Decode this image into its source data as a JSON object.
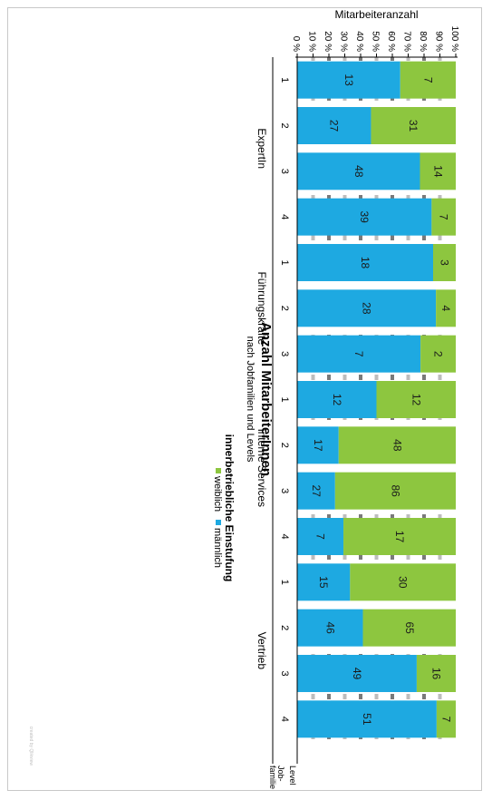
{
  "chart_data": {
    "type": "bar",
    "stacked": "percent",
    "title": "Anzahl MitarbeiterInnen",
    "subtitle": "nach Jobfamilien und Levels",
    "ylabel": "Mitarbeiteranzahl",
    "ylim": [
      0,
      100
    ],
    "yticks": [
      "0 %",
      "10 %",
      "20 %",
      "30 %",
      "40 %",
      "50 %",
      "60 %",
      "70 %",
      "80 %",
      "90 %",
      "100 %"
    ],
    "row_labels": {
      "level": "Level",
      "family": "Job-familie"
    },
    "legend": {
      "title": "innerbetriebliche Einstufung",
      "position": "bottom-center"
    },
    "watermark": "created by Qlikview",
    "groups": [
      {
        "name": "ExpertIn",
        "levels": [
          "1",
          "2",
          "3",
          "4"
        ]
      },
      {
        "name": "Führungskräfte",
        "levels": [
          "1",
          "2",
          "3"
        ]
      },
      {
        "name": "interne Services",
        "levels": [
          "1",
          "2",
          "3",
          "4"
        ]
      },
      {
        "name": "Vertrieb",
        "levels": [
          "1",
          "2",
          "3",
          "4"
        ]
      }
    ],
    "categories": [
      "1",
      "2",
      "3",
      "4",
      "1",
      "2",
      "3",
      "1",
      "2",
      "3",
      "4",
      "1",
      "2",
      "3",
      "4"
    ],
    "series": [
      {
        "name": "männlich",
        "color": "#1ea9e1",
        "values": [
          13,
          27,
          48,
          39,
          18,
          28,
          7,
          12,
          17,
          27,
          7,
          15,
          46,
          49,
          51
        ]
      },
      {
        "name": "weiblich",
        "color": "#8dc63f",
        "values": [
          7,
          31,
          14,
          7,
          3,
          4,
          2,
          12,
          48,
          86,
          17,
          30,
          65,
          16,
          7
        ]
      }
    ]
  }
}
